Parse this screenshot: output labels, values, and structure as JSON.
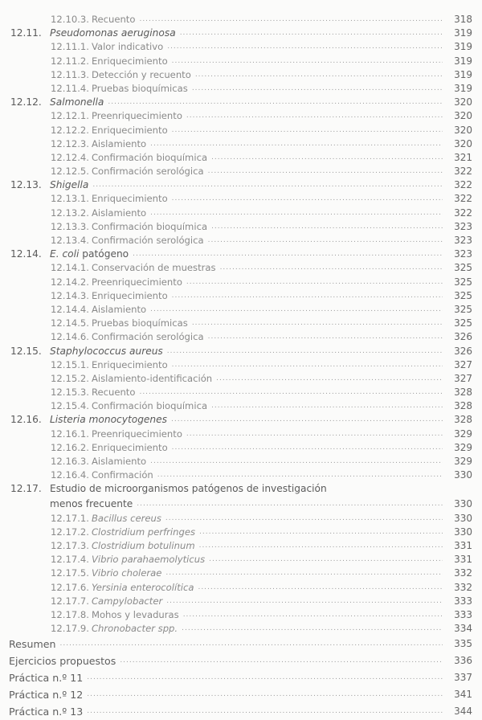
{
  "entries": [
    {
      "level": 2,
      "num": "12.10.3.",
      "it": "",
      "rest": "Recuento",
      "page": "318"
    },
    {
      "level": 1,
      "num": "12.11.",
      "it": "Pseudomonas aeruginosa",
      "rest": "",
      "page": "319"
    },
    {
      "level": 2,
      "num": "12.11.1.",
      "it": "",
      "rest": "Valor indicativo",
      "page": "319"
    },
    {
      "level": 2,
      "num": "12.11.2.",
      "it": "",
      "rest": "Enriquecimiento",
      "page": "319"
    },
    {
      "level": 2,
      "num": "12.11.3.",
      "it": "",
      "rest": "Detección y recuento",
      "page": "319"
    },
    {
      "level": 2,
      "num": "12.11.4.",
      "it": "",
      "rest": "Pruebas bioquímicas",
      "page": "319"
    },
    {
      "level": 1,
      "num": "12.12.",
      "it": "Salmonella",
      "rest": "",
      "page": "320"
    },
    {
      "level": 2,
      "num": "12.12.1.",
      "it": "",
      "rest": "Preenriquecimiento",
      "page": "320"
    },
    {
      "level": 2,
      "num": "12.12.2.",
      "it": "",
      "rest": "Enriquecimiento",
      "page": "320"
    },
    {
      "level": 2,
      "num": "12.12.3.",
      "it": "",
      "rest": "Aislamiento",
      "page": "320"
    },
    {
      "level": 2,
      "num": "12.12.4.",
      "it": "",
      "rest": "Confirmación bioquímica",
      "page": "321"
    },
    {
      "level": 2,
      "num": "12.12.5.",
      "it": "",
      "rest": "Confirmación serológica",
      "page": "322"
    },
    {
      "level": 1,
      "num": "12.13.",
      "it": "Shigella",
      "rest": "",
      "page": "322"
    },
    {
      "level": 2,
      "num": "12.13.1.",
      "it": "",
      "rest": "Enriquecimiento",
      "page": "322"
    },
    {
      "level": 2,
      "num": "12.13.2.",
      "it": "",
      "rest": "Aislamiento",
      "page": "322"
    },
    {
      "level": 2,
      "num": "12.13.3.",
      "it": "",
      "rest": "Confirmación bioquímica",
      "page": "323"
    },
    {
      "level": 2,
      "num": "12.13.4.",
      "it": "",
      "rest": "Confirmación serológica",
      "page": "323"
    },
    {
      "level": 1,
      "num": "12.14.",
      "it": "E. coli",
      "rest": " patógeno",
      "page": "323"
    },
    {
      "level": 2,
      "num": "12.14.1.",
      "it": "",
      "rest": "Conservación de muestras",
      "page": "325"
    },
    {
      "level": 2,
      "num": "12.14.2.",
      "it": "",
      "rest": "Preenriquecimiento",
      "page": "325"
    },
    {
      "level": 2,
      "num": "12.14.3.",
      "it": "",
      "rest": "Enriquecimiento",
      "page": "325"
    },
    {
      "level": 2,
      "num": "12.14.4.",
      "it": "",
      "rest": "Aislamiento",
      "page": "325"
    },
    {
      "level": 2,
      "num": "12.14.5.",
      "it": "",
      "rest": "Pruebas bioquímicas",
      "page": "325"
    },
    {
      "level": 2,
      "num": "12.14.6.",
      "it": "",
      "rest": "Confirmación serológica",
      "page": "326"
    },
    {
      "level": 1,
      "num": "12.15.",
      "it": "Staphylococcus aureus",
      "rest": "",
      "page": "326"
    },
    {
      "level": 2,
      "num": "12.15.1.",
      "it": "",
      "rest": "Enriquecimiento",
      "page": "327"
    },
    {
      "level": 2,
      "num": "12.15.2.",
      "it": "",
      "rest": "Aislamiento-identificación",
      "page": "327"
    },
    {
      "level": 2,
      "num": "12.15.3.",
      "it": "",
      "rest": "Recuento",
      "page": "328"
    },
    {
      "level": 2,
      "num": "12.15.4.",
      "it": "",
      "rest": "Confirmación bioquímica",
      "page": "328"
    },
    {
      "level": 1,
      "num": "12.16.",
      "it": "Listeria monocytogenes",
      "rest": "",
      "page": "328"
    },
    {
      "level": 2,
      "num": "12.16.1.",
      "it": "",
      "rest": "Preenriquecimiento",
      "page": "329"
    },
    {
      "level": 2,
      "num": "12.16.2.",
      "it": "",
      "rest": "Enriquecimiento",
      "page": "329"
    },
    {
      "level": 2,
      "num": "12.16.3.",
      "it": "",
      "rest": "Aislamiento",
      "page": "329"
    },
    {
      "level": 2,
      "num": "12.16.4.",
      "it": "",
      "rest": "Confirmación",
      "page": "330"
    },
    {
      "level": 1,
      "num": "12.17.",
      "it": "",
      "rest": "Estudio de microorganismos patógenos de investigación",
      "page": "",
      "nodots": true
    },
    {
      "level": 1,
      "num": "",
      "it": "",
      "rest": "menos frecuente",
      "page": "330",
      "cont": true
    },
    {
      "level": 2,
      "num": "12.17.1.",
      "it": "Bacillus cereus",
      "rest": "",
      "page": "330"
    },
    {
      "level": 2,
      "num": "12.17.2.",
      "it": "Clostridium perfringes",
      "rest": "",
      "page": "330"
    },
    {
      "level": 2,
      "num": "12.17.3.",
      "it": "Clostridium botulinum",
      "rest": "",
      "page": "331"
    },
    {
      "level": 2,
      "num": "12.17.4.",
      "it": "Vibrio parahaemolyticus",
      "rest": "",
      "page": "331"
    },
    {
      "level": 2,
      "num": "12.17.5.",
      "it": "Vibrio cholerae",
      "rest": "",
      "page": "332"
    },
    {
      "level": 2,
      "num": "12.17.6.",
      "it": "Yersinia enterocolítica",
      "rest": "",
      "page": "332"
    },
    {
      "level": 2,
      "num": "12.17.7.",
      "it": "Campylobacter",
      "rest": "",
      "page": "333"
    },
    {
      "level": 2,
      "num": "12.17.8.",
      "it": "",
      "rest": "Mohos y levaduras",
      "page": "333"
    },
    {
      "level": 2,
      "num": "12.17.9.",
      "it": "Chronobacter spp.",
      "rest": "",
      "page": "334"
    },
    {
      "level": 0,
      "num": "",
      "it": "",
      "rest": "Resumen",
      "page": "335"
    },
    {
      "level": 0,
      "num": "",
      "it": "",
      "rest": "Ejercicios propuestos",
      "page": "336"
    },
    {
      "level": 0,
      "num": "",
      "it": "",
      "rest": "Práctica n.º 11",
      "page": "337"
    },
    {
      "level": 0,
      "num": "",
      "it": "",
      "rest": "Práctica n.º 12",
      "page": "341"
    },
    {
      "level": 0,
      "num": "",
      "it": "",
      "rest": "Práctica n.º 13",
      "page": "344"
    }
  ]
}
